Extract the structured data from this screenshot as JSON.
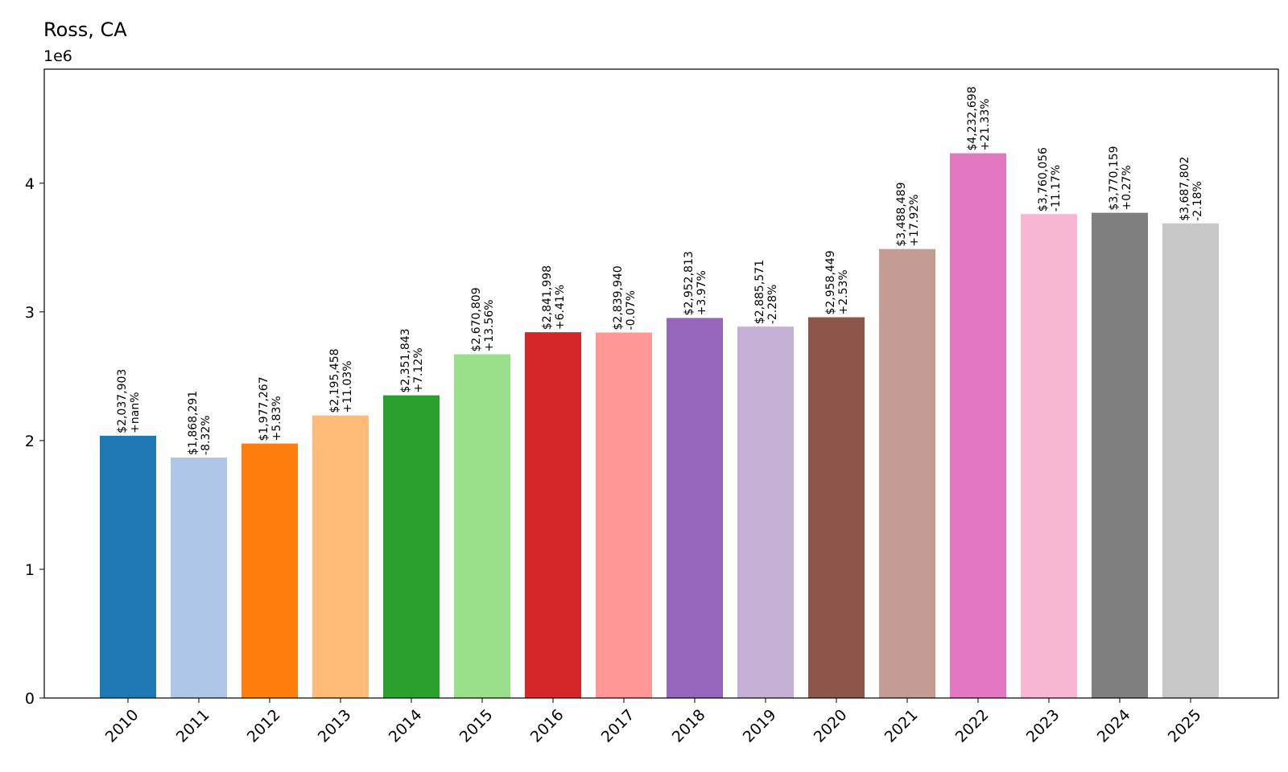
{
  "chart_data": {
    "type": "bar",
    "title": "Ross, CA",
    "xlabel": "",
    "ylabel": "",
    "y_offset_label": "1e6",
    "y_scale_factor": 1000000,
    "ylim": [
      0,
      4886000
    ],
    "yticks": [
      0,
      1,
      2,
      3,
      4
    ],
    "grid": false,
    "legend": "none",
    "categories": [
      "2010",
      "2011",
      "2012",
      "2013",
      "2014",
      "2015",
      "2016",
      "2017",
      "2018",
      "2019",
      "2020",
      "2021",
      "2022",
      "2023",
      "2024",
      "2025"
    ],
    "values": [
      2037903,
      1868291,
      1977267,
      2195458,
      2351843,
      2670809,
      2841998,
      2839940,
      2952813,
      2885571,
      2958449,
      3488489,
      4232698,
      3760056,
      3770159,
      3687802
    ],
    "value_labels": [
      "$2,037,903",
      "$1,868,291",
      "$1,977,267",
      "$2,195,458",
      "$2,351,843",
      "$2,670,809",
      "$2,841,998",
      "$2,839,940",
      "$2,952,813",
      "$2,885,571",
      "$2,958,449",
      "$3,488,489",
      "$4,232,698",
      "$3,760,056",
      "$3,770,159",
      "$3,687,802"
    ],
    "change_labels": [
      "+nan%",
      "-8.32%",
      "+5.83%",
      "+11.03%",
      "+7.12%",
      "+13.56%",
      "+6.41%",
      "-0.07%",
      "+3.97%",
      "-2.28%",
      "+2.53%",
      "+17.92%",
      "+21.33%",
      "-11.17%",
      "+0.27%",
      "-2.18%"
    ],
    "colors": [
      "#1f77b4",
      "#aec7e8",
      "#ff7f0e",
      "#ffbb78",
      "#2ca02c",
      "#98df8a",
      "#d62728",
      "#ff9896",
      "#9467bd",
      "#c5b0d5",
      "#8c564b",
      "#c49c94",
      "#e377c2",
      "#f7b6d2",
      "#7f7f7f",
      "#c7c7c7"
    ]
  }
}
